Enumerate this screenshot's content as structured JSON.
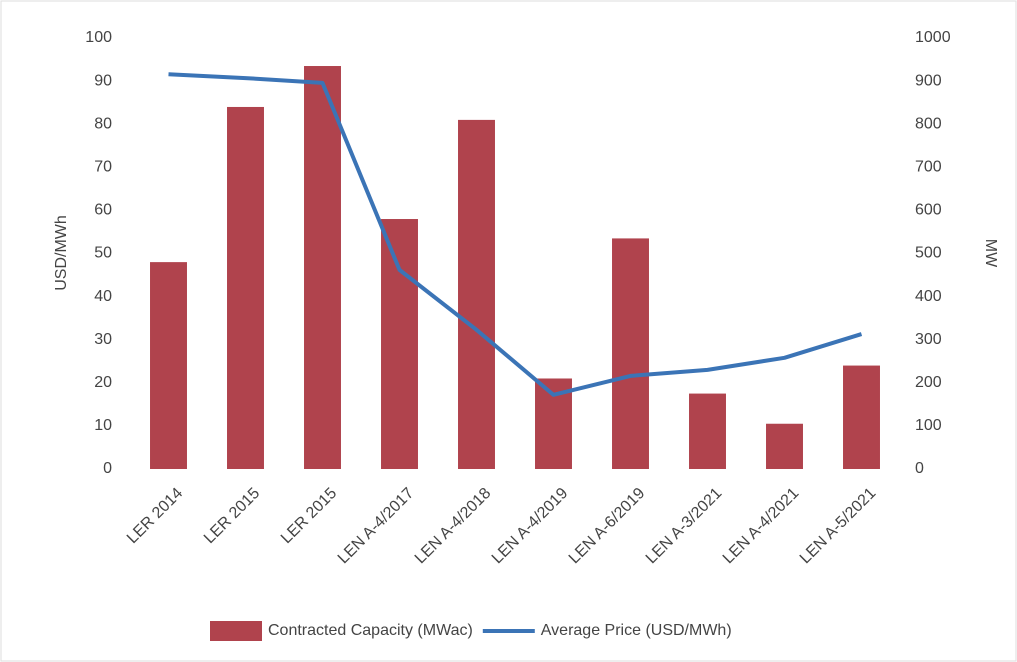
{
  "chart_data": {
    "type": "bar_line",
    "categories": [
      "LER 2014",
      "LER 2015",
      "LER 2015",
      "LEN A-4/2017",
      "LEN A-4/2018",
      "LEN A-4/2019",
      "LEN A-6/2019",
      "LEN A-3/2021",
      "LEN A-4/2021",
      "LEN A-5/2021"
    ],
    "series": [
      {
        "name": "Contracted Capacity (MWac)",
        "type": "bar",
        "axis": "y2",
        "color": "#b0434d",
        "values": [
          480,
          840,
          935,
          580,
          810,
          210,
          535,
          175,
          105,
          240
        ]
      },
      {
        "name": "Average Price (USD/MWh)",
        "type": "line",
        "axis": "y",
        "color": "#3b74b6",
        "values": [
          91.6,
          90.7,
          89.6,
          46.2,
          32.3,
          17.2,
          21.6,
          23,
          25.8,
          31.3
        ]
      }
    ],
    "ylabel": "USD/MWh",
    "y2label": "MW",
    "ylim": [
      0,
      100
    ],
    "yticks": [
      0,
      10,
      20,
      30,
      40,
      50,
      60,
      70,
      80,
      90,
      100
    ],
    "y2lim": [
      0,
      1000
    ],
    "y2ticks": [
      0,
      100,
      200,
      300,
      400,
      500,
      600,
      700,
      800,
      900,
      1000
    ],
    "grid": false,
    "legend": "bottom"
  }
}
